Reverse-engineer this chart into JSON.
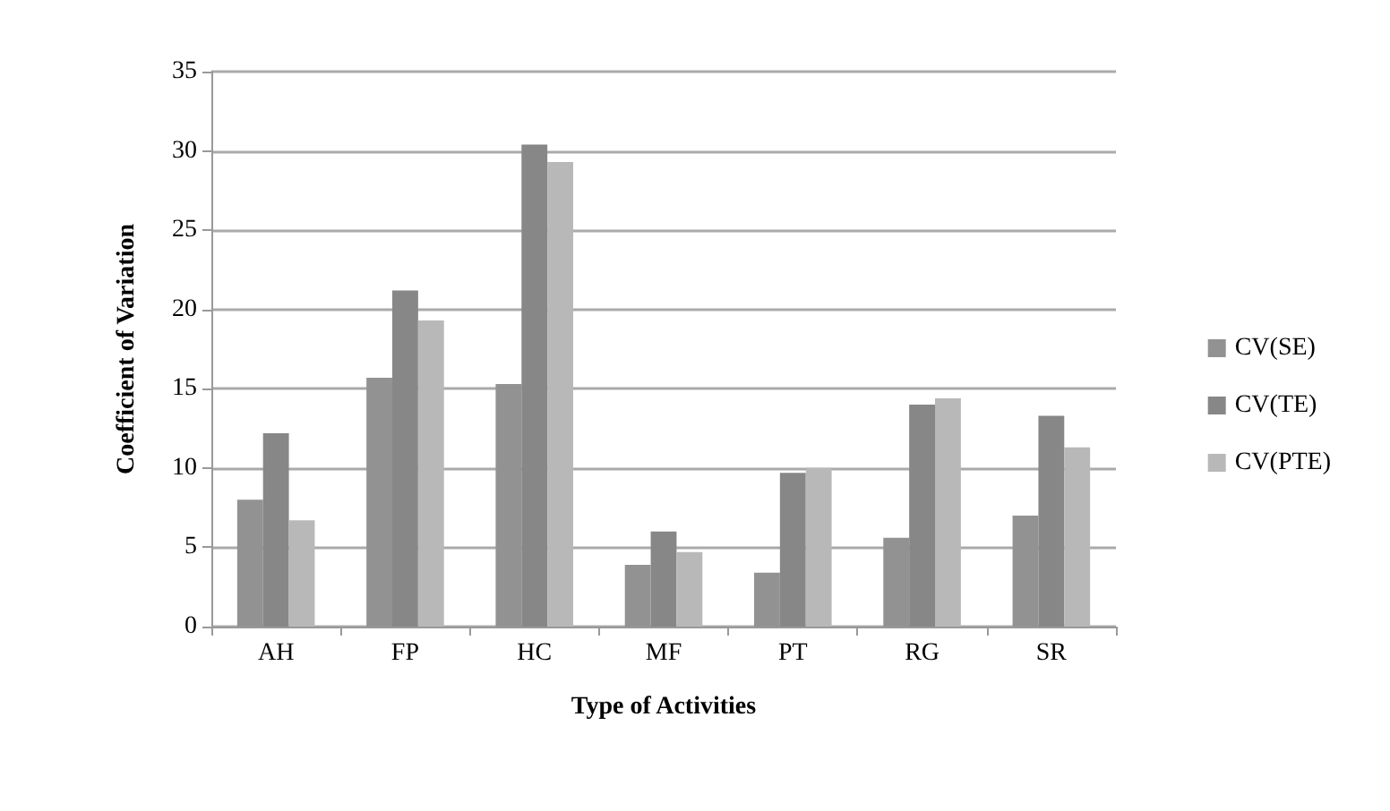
{
  "chart_data": {
    "type": "bar",
    "xlabel": "Type of Activities",
    "ylabel": "Coefficient of Variation",
    "categories": [
      "AH",
      "FP",
      "HC",
      "MF",
      "PT",
      "RG",
      "SR"
    ],
    "series": [
      {
        "name": "CV(SE)",
        "color": "#929292",
        "values": [
          8,
          15.7,
          15.3,
          3.9,
          3.4,
          5.6,
          7
        ]
      },
      {
        "name": "CV(TE)",
        "color": "#878787",
        "values": [
          12.2,
          21.2,
          30.4,
          6,
          9.7,
          14,
          13.3
        ]
      },
      {
        "name": "CV(PTE)",
        "color": "#b8b8b8",
        "values": [
          6.7,
          19.3,
          29.3,
          4.7,
          10,
          14.4,
          11.3
        ]
      }
    ],
    "ylim": [
      0,
      35
    ],
    "yticks": [
      0,
      5,
      10,
      15,
      20,
      25,
      30,
      35
    ],
    "grid": "y",
    "legend": "right"
  }
}
